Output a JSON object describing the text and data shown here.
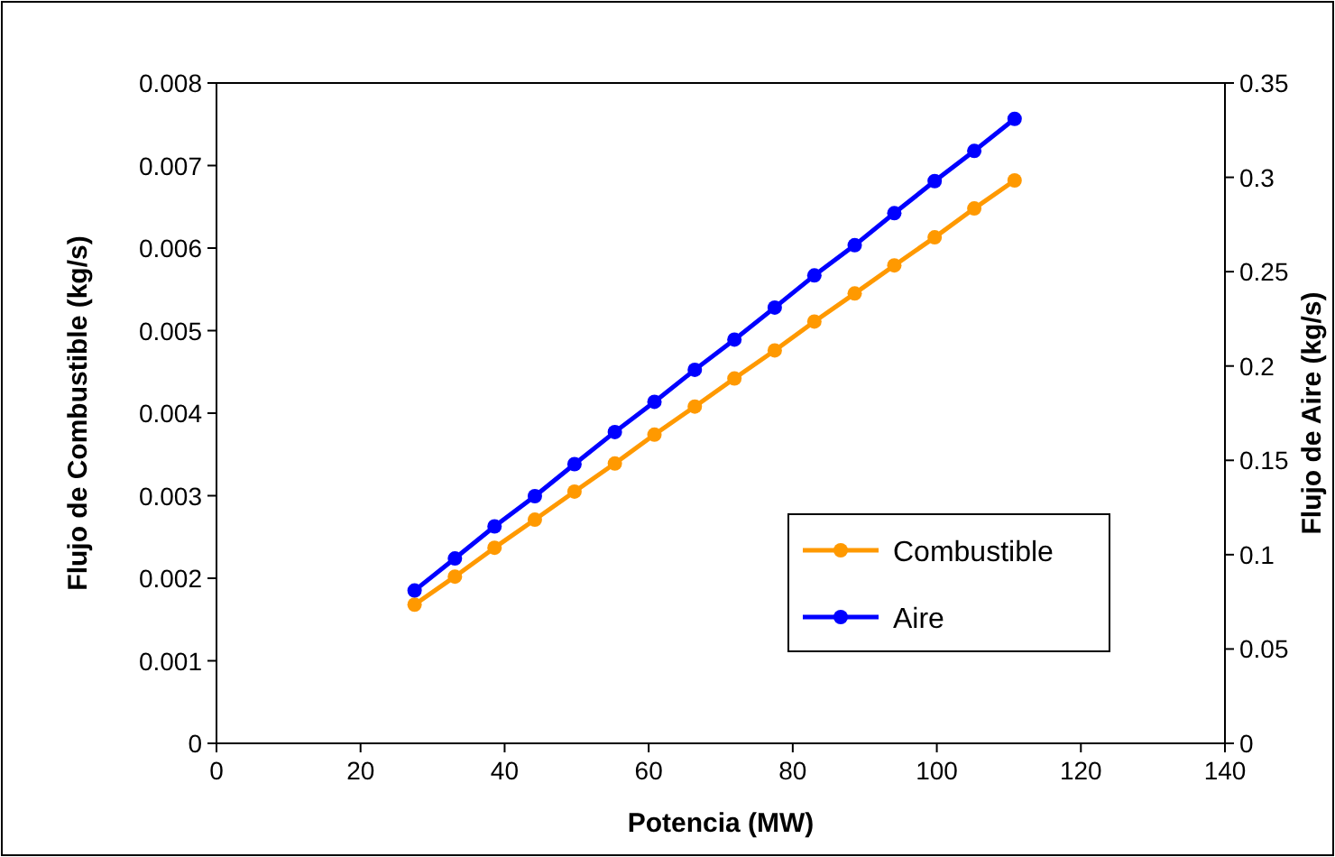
{
  "chart_data": {
    "type": "line",
    "xlabel": "Potencia (MW)",
    "ylabel": "Flujo de Combustible (kg/s)",
    "y2label": "Flujo de Aire (kg/s)",
    "x": [
      27.5,
      33.1,
      38.6,
      44.2,
      49.7,
      55.3,
      60.8,
      66.4,
      71.9,
      77.5,
      83.0,
      88.6,
      94.1,
      99.7,
      105.2,
      110.8
    ],
    "series": [
      {
        "name": "Combustible",
        "color": "#ff9900",
        "values": [
          0.00168,
          0.00202,
          0.00237,
          0.00271,
          0.00305,
          0.00339,
          0.00374,
          0.00408,
          0.00442,
          0.00476,
          0.00511,
          0.00545,
          0.00579,
          0.00613,
          0.00648,
          0.00682
        ]
      },
      {
        "name": "Aire",
        "color": "#0000ff",
        "axis": "y2",
        "values": [
          0.081,
          0.098,
          0.115,
          0.131,
          0.148,
          0.165,
          0.181,
          0.198,
          0.214,
          0.231,
          0.248,
          0.264,
          0.281,
          0.298,
          0.314,
          0.331
        ]
      }
    ],
    "xlim": [
      0,
      140
    ],
    "xticks": [
      0,
      20,
      40,
      60,
      80,
      100,
      120,
      140
    ],
    "ylim": [
      0,
      0.008
    ],
    "yticks": [
      0,
      0.001,
      0.002,
      0.003,
      0.004,
      0.005,
      0.006,
      0.007,
      0.008
    ],
    "y2lim": [
      0,
      0.35
    ],
    "y2ticks": [
      0,
      0.05,
      0.1,
      0.15,
      0.2,
      0.25,
      0.3,
      0.35
    ],
    "legend": "right",
    "marker": "circle",
    "line_style": "solid",
    "grid": false
  }
}
